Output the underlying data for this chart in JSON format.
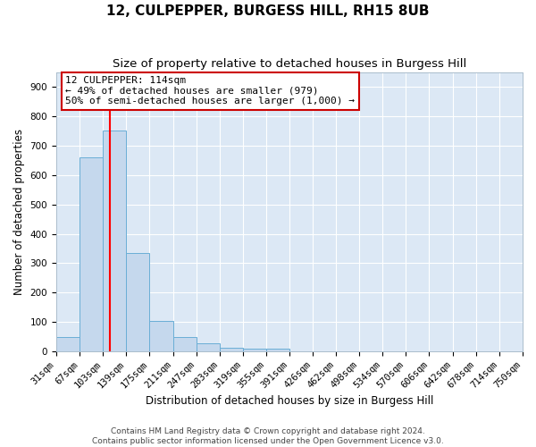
{
  "title": "12, CULPEPPER, BURGESS HILL, RH15 8UB",
  "subtitle": "Size of property relative to detached houses in Burgess Hill",
  "xlabel": "Distribution of detached houses by size in Burgess Hill",
  "ylabel": "Number of detached properties",
  "bin_edges": [
    31,
    67,
    103,
    139,
    175,
    211,
    247,
    283,
    319,
    355,
    391,
    426,
    462,
    498,
    534,
    570,
    606,
    642,
    678,
    714,
    750
  ],
  "bar_heights": [
    50,
    660,
    750,
    335,
    105,
    50,
    27,
    13,
    10,
    10,
    0,
    0,
    0,
    0,
    0,
    0,
    0,
    0,
    0,
    0
  ],
  "bar_color": "#c5d8ed",
  "bar_edge_color": "#6aaed6",
  "background_color": "#dce8f5",
  "grid_color": "#ffffff",
  "red_line_x": 114,
  "annotation_line1": "12 CULPEPPER: 114sqm",
  "annotation_line2": "← 49% of detached houses are smaller (979)",
  "annotation_line3": "50% of semi-detached houses are larger (1,000) →",
  "annotation_box_facecolor": "#ffffff",
  "annotation_box_edgecolor": "#cc0000",
  "ylim": [
    0,
    950
  ],
  "yticks": [
    0,
    100,
    200,
    300,
    400,
    500,
    600,
    700,
    800,
    900
  ],
  "footer_line1": "Contains HM Land Registry data © Crown copyright and database right 2024.",
  "footer_line2": "Contains public sector information licensed under the Open Government Licence v3.0.",
  "title_fontsize": 11,
  "subtitle_fontsize": 9.5,
  "axis_label_fontsize": 8.5,
  "tick_fontsize": 7.5,
  "annotation_fontsize": 8,
  "footer_fontsize": 6.5
}
